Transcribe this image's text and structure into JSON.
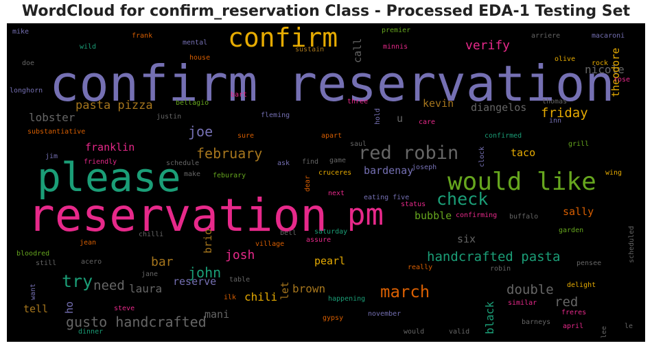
{
  "chart_data": {
    "type": "wordcloud",
    "title": "WordCloud for confirm_reservation Class - Processed EDA-1 Testing Set",
    "palette": {
      "purple": "#7570b3",
      "pink": "#e7298a",
      "teal": "#1b9e77",
      "green": "#66a61e",
      "orange": "#d95f02",
      "gold": "#e6ab02",
      "brown": "#a6761d",
      "gray": "#666666"
    },
    "words": [
      {
        "text": "confirm reservation",
        "color": "#7570b3"
      },
      {
        "text": "reservation",
        "color": "#e7298a"
      },
      {
        "text": "please",
        "color": "#1b9e77"
      },
      {
        "text": "confirm",
        "color": "#e6ab02"
      },
      {
        "text": "pm",
        "color": "#e7298a"
      },
      {
        "text": "would like",
        "color": "#66a61e"
      },
      {
        "text": "red robin",
        "color": "#666666"
      },
      {
        "text": "check",
        "color": "#1b9e77"
      },
      {
        "text": "march",
        "color": "#d95f02"
      },
      {
        "text": "handcrafted pasta",
        "color": "#1b9e77"
      },
      {
        "text": "gusto handcrafted",
        "color": "#666666"
      },
      {
        "text": "february",
        "color": "#a6761d"
      },
      {
        "text": "pasta pizza",
        "color": "#a6761d"
      },
      {
        "text": "try",
        "color": "#1b9e77"
      },
      {
        "text": "john",
        "color": "#1b9e77"
      },
      {
        "text": "josh",
        "color": "#e7298a"
      },
      {
        "text": "verify",
        "color": "#e7298a"
      },
      {
        "text": "friday",
        "color": "#e6ab02"
      },
      {
        "text": "joe",
        "color": "#7570b3"
      },
      {
        "text": "need",
        "color": "#666666"
      },
      {
        "text": "double",
        "color": "#666666"
      },
      {
        "text": "red",
        "color": "#666666"
      },
      {
        "text": "lobster",
        "color": "#666666"
      },
      {
        "text": "bar",
        "color": "#a6761d"
      },
      {
        "text": "laura",
        "color": "#666666"
      },
      {
        "text": "chili",
        "color": "#e6ab02"
      },
      {
        "text": "brown",
        "color": "#a6761d"
      },
      {
        "text": "nicole",
        "color": "#666666"
      },
      {
        "text": "kevin",
        "color": "#a6761d"
      },
      {
        "text": "diangelos",
        "color": "#666666"
      },
      {
        "text": "taco",
        "color": "#e6ab02"
      },
      {
        "text": "sally",
        "color": "#d95f02"
      },
      {
        "text": "six",
        "color": "#666666"
      },
      {
        "text": "franklin",
        "color": "#e7298a"
      },
      {
        "text": "bardenay",
        "color": "#7570b3"
      },
      {
        "text": "bubble",
        "color": "#66a61e"
      },
      {
        "text": "pearl",
        "color": "#e6ab02"
      },
      {
        "text": "reserve",
        "color": "#7570b3"
      },
      {
        "text": "tell",
        "color": "#a6761d"
      },
      {
        "text": "mani",
        "color": "#666666"
      },
      {
        "text": "theodore",
        "color": "#e6ab02",
        "vertical": true
      },
      {
        "text": "call",
        "color": "#666666",
        "vertical": true
      },
      {
        "text": "brio",
        "color": "#a6761d",
        "vertical": true
      },
      {
        "text": "black",
        "color": "#1b9e77",
        "vertical": true
      },
      {
        "text": "let",
        "color": "#a6761d",
        "vertical": true
      },
      {
        "text": "ho",
        "color": "#7570b3",
        "vertical": true
      },
      {
        "text": "u",
        "color": "#666666"
      },
      {
        "text": "mike",
        "color": "#7570b3"
      },
      {
        "text": "frank",
        "color": "#d95f02"
      },
      {
        "text": "mental",
        "color": "#7570b3"
      },
      {
        "text": "premier",
        "color": "#66a61e"
      },
      {
        "text": "arriere",
        "color": "#666666"
      },
      {
        "text": "macaroni",
        "color": "#7570b3"
      },
      {
        "text": "wild",
        "color": "#1b9e77"
      },
      {
        "text": "minnis",
        "color": "#e7298a"
      },
      {
        "text": "sustain",
        "color": "#a6761d"
      },
      {
        "text": "house",
        "color": "#d95f02"
      },
      {
        "text": "olive",
        "color": "#e6ab02"
      },
      {
        "text": "rock",
        "color": "#e6ab02"
      },
      {
        "text": "doe",
        "color": "#666666"
      },
      {
        "text": "rose",
        "color": "#e7298a"
      },
      {
        "text": "longhorn",
        "color": "#7570b3"
      },
      {
        "text": "bart",
        "color": "#e7298a"
      },
      {
        "text": "bellagio",
        "color": "#66a61e"
      },
      {
        "text": "three",
        "color": "#e7298a"
      },
      {
        "text": "thomas",
        "color": "#666666"
      },
      {
        "text": "fleming",
        "color": "#7570b3"
      },
      {
        "text": "justin",
        "color": "#666666"
      },
      {
        "text": "inn",
        "color": "#7570b3"
      },
      {
        "text": "care",
        "color": "#e7298a"
      },
      {
        "text": "hold",
        "color": "#7570b3",
        "vertical": true
      },
      {
        "text": "confirmed",
        "color": "#1b9e77"
      },
      {
        "text": "substantiative",
        "color": "#d95f02"
      },
      {
        "text": "sure",
        "color": "#d95f02"
      },
      {
        "text": "apart",
        "color": "#d95f02"
      },
      {
        "text": "grill",
        "color": "#66a61e"
      },
      {
        "text": "saul",
        "color": "#666666"
      },
      {
        "text": "jim",
        "color": "#7570b3"
      },
      {
        "text": "friendly",
        "color": "#e7298a"
      },
      {
        "text": "schedule",
        "color": "#666666"
      },
      {
        "text": "ask",
        "color": "#7570b3"
      },
      {
        "text": "find",
        "color": "#666666"
      },
      {
        "text": "game",
        "color": "#666666"
      },
      {
        "text": "joseph",
        "color": "#7570b3"
      },
      {
        "text": "clock",
        "color": "#7570b3",
        "vertical": true
      },
      {
        "text": "make",
        "color": "#666666"
      },
      {
        "text": "feburary",
        "color": "#66a61e"
      },
      {
        "text": "dear",
        "color": "#d95f02",
        "vertical": true
      },
      {
        "text": "cruceres",
        "color": "#e6ab02"
      },
      {
        "text": "wing",
        "color": "#e6ab02"
      },
      {
        "text": "next",
        "color": "#e7298a"
      },
      {
        "text": "eating five",
        "color": "#7570b3"
      },
      {
        "text": "status",
        "color": "#e7298a"
      },
      {
        "text": "buffalo",
        "color": "#666666"
      },
      {
        "text": "confirming",
        "color": "#e7298a"
      },
      {
        "text": "saturday",
        "color": "#1b9e77"
      },
      {
        "text": "garden",
        "color": "#66a61e"
      },
      {
        "text": "bell",
        "color": "#666666"
      },
      {
        "text": "assure",
        "color": "#e7298a"
      },
      {
        "text": "scheduled",
        "color": "#666666",
        "vertical": true
      },
      {
        "text": "chilli",
        "color": "#666666"
      },
      {
        "text": "bloodred",
        "color": "#66a61e"
      },
      {
        "text": "jean",
        "color": "#d95f02"
      },
      {
        "text": "village",
        "color": "#d95f02"
      },
      {
        "text": "still",
        "color": "#666666"
      },
      {
        "text": "acero",
        "color": "#666666"
      },
      {
        "text": "really",
        "color": "#d95f02"
      },
      {
        "text": "pensee",
        "color": "#666666"
      },
      {
        "text": "robin",
        "color": "#666666"
      },
      {
        "text": "jane",
        "color": "#666666"
      },
      {
        "text": "want",
        "color": "#7570b3",
        "vertical": true
      },
      {
        "text": "table",
        "color": "#666666"
      },
      {
        "text": "delight",
        "color": "#e6ab02"
      },
      {
        "text": "ilk",
        "color": "#d95f02"
      },
      {
        "text": "happening",
        "color": "#1b9e77"
      },
      {
        "text": "similar",
        "color": "#e7298a"
      },
      {
        "text": "steve",
        "color": "#e7298a"
      },
      {
        "text": "freres",
        "color": "#e7298a"
      },
      {
        "text": "november",
        "color": "#7570b3"
      },
      {
        "text": "gypsy",
        "color": "#d95f02"
      },
      {
        "text": "barneys",
        "color": "#666666"
      },
      {
        "text": "april",
        "color": "#e7298a"
      },
      {
        "text": "dinner",
        "color": "#1b9e77"
      },
      {
        "text": "would",
        "color": "#666666"
      },
      {
        "text": "valid",
        "color": "#666666"
      },
      {
        "text": "lee",
        "color": "#666666",
        "vertical": true
      },
      {
        "text": "le",
        "color": "#666666"
      }
    ]
  }
}
